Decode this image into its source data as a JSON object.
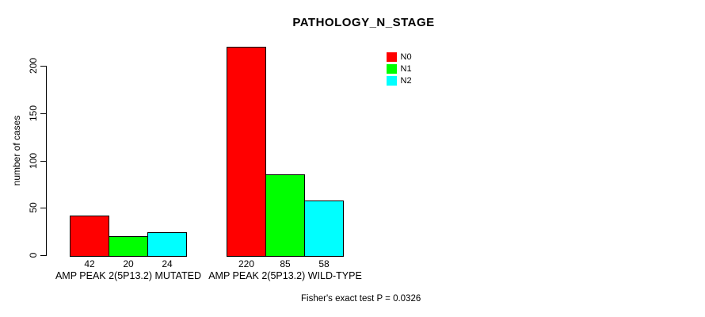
{
  "chart_data": {
    "type": "bar",
    "title": "PATHOLOGY_N_STAGE",
    "ylabel": "number of cases",
    "xlabel": "",
    "categories": [
      "AMP PEAK 2(5P13.2) MUTATED",
      "AMP PEAK 2(5P13.2) WILD-TYPE"
    ],
    "series": [
      {
        "name": "N0",
        "color": "#FF0000",
        "values": [
          42,
          220
        ]
      },
      {
        "name": "N1",
        "color": "#00FF00",
        "values": [
          20,
          85
        ]
      },
      {
        "name": "N2",
        "color": "#00FFFF",
        "values": [
          24,
          58
        ]
      }
    ],
    "yticks": [
      0,
      50,
      100,
      150,
      200
    ],
    "ylim": [
      0,
      230
    ],
    "grid": false,
    "show_bar_values": true,
    "legend_position": "top-right",
    "annotation": "Fisher's exact test P = 0.0326",
    "axis_color": "#000000",
    "text_color": "#000000",
    "background_color": "#FFFFFF"
  }
}
